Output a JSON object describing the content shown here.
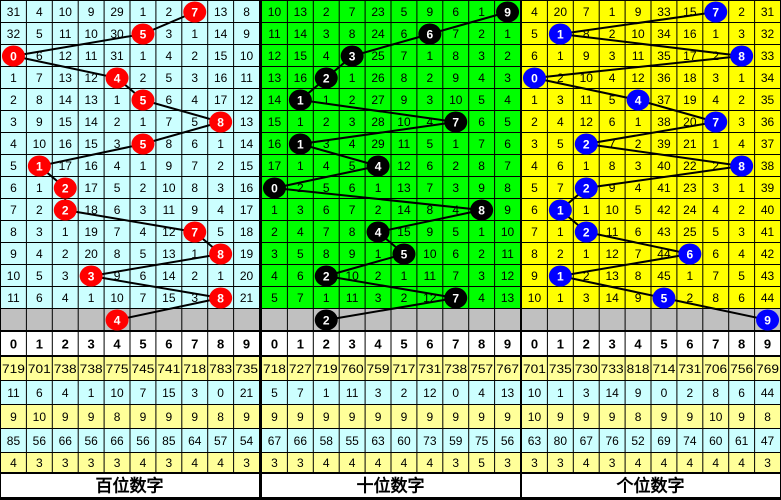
{
  "chart_data": {
    "type": "table",
    "digits": [
      "0",
      "1",
      "2",
      "3",
      "4",
      "5",
      "6",
      "7",
      "8",
      "9"
    ],
    "colors": {
      "grid": "#000000",
      "current_row": "#c0c0c0",
      "header_row": "#ffffff",
      "stat_yellow": "#ffff99",
      "stat_cyan": "#ccffff"
    },
    "panels": [
      {
        "label": "百位数字",
        "bg_color": "#ccffff",
        "ball_color": "#ff0000",
        "draws": [
          7,
          5,
          0,
          4,
          5,
          8,
          5,
          1,
          2,
          2,
          7,
          8,
          3,
          8
        ],
        "current": 4,
        "rows": [
          [
            31,
            4,
            10,
            9,
            29,
            1,
            2,
            null,
            13,
            8
          ],
          [
            32,
            5,
            11,
            10,
            30,
            null,
            3,
            1,
            14,
            9
          ],
          [
            null,
            6,
            12,
            11,
            31,
            1,
            4,
            2,
            15,
            10
          ],
          [
            1,
            7,
            13,
            12,
            null,
            2,
            5,
            3,
            16,
            11
          ],
          [
            2,
            8,
            14,
            13,
            1,
            null,
            6,
            4,
            17,
            12
          ],
          [
            3,
            9,
            15,
            14,
            2,
            1,
            7,
            5,
            null,
            13
          ],
          [
            4,
            10,
            16,
            15,
            3,
            null,
            8,
            6,
            1,
            14
          ],
          [
            5,
            null,
            17,
            16,
            4,
            1,
            9,
            7,
            2,
            15
          ],
          [
            6,
            1,
            null,
            17,
            5,
            2,
            10,
            8,
            3,
            16
          ],
          [
            7,
            2,
            null,
            18,
            6,
            3,
            11,
            9,
            4,
            17
          ],
          [
            8,
            3,
            1,
            19,
            7,
            4,
            12,
            null,
            5,
            18
          ],
          [
            9,
            4,
            2,
            20,
            8,
            5,
            13,
            1,
            null,
            19
          ],
          [
            10,
            5,
            3,
            null,
            9,
            6,
            14,
            2,
            1,
            20
          ],
          [
            11,
            6,
            4,
            1,
            10,
            7,
            15,
            3,
            null,
            21
          ]
        ],
        "stats": [
          [
            719,
            701,
            738,
            738,
            775,
            745,
            741,
            718,
            783,
            735
          ],
          [
            11,
            6,
            4,
            1,
            10,
            7,
            15,
            3,
            0,
            21
          ],
          [
            9,
            10,
            9,
            9,
            8,
            9,
            9,
            9,
            8,
            9
          ],
          [
            85,
            56,
            66,
            56,
            66,
            56,
            85,
            64,
            57,
            54
          ],
          [
            4,
            3,
            3,
            3,
            3,
            4,
            3,
            4,
            4,
            3
          ]
        ]
      },
      {
        "label": "十位数字",
        "bg_color": "#00ff00",
        "ball_color": "#000000",
        "draws": [
          9,
          6,
          3,
          2,
          1,
          7,
          1,
          4,
          0,
          8,
          4,
          5,
          2,
          7
        ],
        "current": 2,
        "rows": [
          [
            10,
            13,
            2,
            7,
            23,
            5,
            9,
            6,
            1,
            null
          ],
          [
            11,
            14,
            3,
            8,
            24,
            6,
            null,
            7,
            2,
            1
          ],
          [
            12,
            15,
            4,
            null,
            25,
            7,
            1,
            8,
            3,
            2
          ],
          [
            13,
            16,
            null,
            1,
            26,
            8,
            2,
            9,
            4,
            3
          ],
          [
            14,
            null,
            1,
            2,
            27,
            9,
            3,
            10,
            5,
            4
          ],
          [
            15,
            1,
            2,
            3,
            28,
            10,
            4,
            null,
            6,
            5
          ],
          [
            16,
            null,
            3,
            4,
            29,
            11,
            5,
            1,
            7,
            6
          ],
          [
            17,
            1,
            4,
            5,
            null,
            12,
            6,
            2,
            8,
            7
          ],
          [
            null,
            2,
            5,
            6,
            1,
            13,
            7,
            3,
            9,
            8
          ],
          [
            1,
            3,
            6,
            7,
            2,
            14,
            8,
            4,
            null,
            9
          ],
          [
            2,
            4,
            7,
            8,
            null,
            15,
            9,
            5,
            1,
            10
          ],
          [
            3,
            5,
            8,
            9,
            1,
            null,
            10,
            6,
            2,
            11
          ],
          [
            4,
            6,
            null,
            10,
            2,
            1,
            11,
            7,
            3,
            12
          ],
          [
            5,
            7,
            1,
            11,
            3,
            2,
            12,
            null,
            4,
            13
          ]
        ],
        "stats": [
          [
            718,
            727,
            719,
            760,
            759,
            717,
            731,
            738,
            757,
            767
          ],
          [
            5,
            7,
            1,
            11,
            3,
            2,
            12,
            0,
            4,
            13
          ],
          [
            9,
            9,
            9,
            9,
            9,
            9,
            9,
            9,
            9,
            9
          ],
          [
            67,
            66,
            58,
            55,
            63,
            60,
            73,
            59,
            75,
            56
          ],
          [
            3,
            3,
            4,
            4,
            4,
            4,
            4,
            3,
            5,
            3
          ]
        ]
      },
      {
        "label": "个位数字",
        "bg_color": "#ffff00",
        "ball_color": "#0000ff",
        "draws": [
          7,
          1,
          8,
          0,
          4,
          7,
          2,
          8,
          2,
          1,
          2,
          6,
          1,
          5
        ],
        "current": 9,
        "rows": [
          [
            4,
            20,
            7,
            1,
            9,
            33,
            15,
            null,
            2,
            31
          ],
          [
            5,
            null,
            8,
            2,
            10,
            34,
            16,
            1,
            3,
            32
          ],
          [
            6,
            1,
            9,
            3,
            11,
            35,
            17,
            2,
            null,
            33
          ],
          [
            null,
            2,
            10,
            4,
            12,
            36,
            18,
            3,
            1,
            34
          ],
          [
            1,
            3,
            11,
            5,
            null,
            37,
            19,
            4,
            2,
            35
          ],
          [
            2,
            4,
            12,
            6,
            1,
            38,
            20,
            null,
            3,
            36
          ],
          [
            3,
            5,
            null,
            7,
            2,
            39,
            21,
            1,
            4,
            37
          ],
          [
            4,
            6,
            1,
            8,
            3,
            40,
            22,
            2,
            null,
            38
          ],
          [
            5,
            7,
            null,
            9,
            4,
            41,
            23,
            3,
            1,
            39
          ],
          [
            6,
            null,
            1,
            10,
            5,
            42,
            24,
            4,
            2,
            40
          ],
          [
            7,
            1,
            null,
            11,
            6,
            43,
            25,
            5,
            3,
            41
          ],
          [
            8,
            2,
            1,
            12,
            7,
            44,
            null,
            6,
            4,
            42
          ],
          [
            9,
            null,
            2,
            13,
            8,
            45,
            1,
            7,
            5,
            43
          ],
          [
            10,
            1,
            3,
            14,
            9,
            null,
            2,
            8,
            6,
            44
          ]
        ],
        "stats": [
          [
            701,
            735,
            730,
            733,
            818,
            714,
            731,
            706,
            756,
            769
          ],
          [
            10,
            1,
            3,
            14,
            9,
            0,
            2,
            8,
            6,
            44
          ],
          [
            10,
            9,
            9,
            9,
            8,
            9,
            9,
            10,
            9,
            8
          ],
          [
            63,
            80,
            67,
            76,
            52,
            69,
            74,
            60,
            61,
            47
          ],
          [
            3,
            3,
            4,
            3,
            4,
            4,
            4,
            4,
            4,
            3
          ]
        ]
      }
    ]
  }
}
